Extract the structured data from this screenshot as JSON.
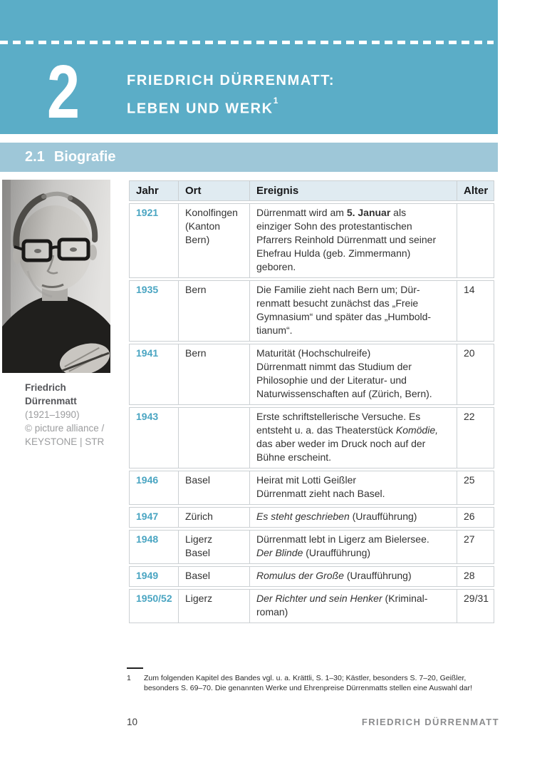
{
  "header": {
    "chapter_number": "2",
    "title_line1": "FRIEDRICH DÜRRENMATT:",
    "title_line2": "LEBEN UND WERK",
    "footnote_ref": "1"
  },
  "section": {
    "number": "2.1",
    "label": "Biografie"
  },
  "photo": {
    "caption_name_line1": "Friedrich",
    "caption_name_line2": "Dürrenmatt",
    "caption_years": "(1921–1990)",
    "caption_credit_line1": "© picture alliance /",
    "caption_credit_line2": "KEYSTONE | STR"
  },
  "table": {
    "headers": [
      "Jahr",
      "Ort",
      "Ereignis",
      "Alter"
    ],
    "rows": [
      {
        "jahr": "1921",
        "ort": "Konolfingen\n(Kanton\nBern)",
        "ereignis": [
          {
            "text": "Dürrenmatt wird am "
          },
          {
            "text": "5. Januar",
            "style": "bold"
          },
          {
            "text": " als\neinziger Sohn des protestantischen\nPfarrers Reinhold Dürrenmatt und seiner\nEhefrau Hulda (geb. Zimmermann)\ngeboren."
          }
        ],
        "alter": ""
      },
      {
        "jahr": "1935",
        "ort": "Bern",
        "ereignis": [
          {
            "text": "Die Familie zieht nach Bern um; Dür-\nrenmatt besucht zunächst das „Freie\nGymnasium“ und später das „Humbold-\ntianum“."
          }
        ],
        "alter": "14"
      },
      {
        "jahr": "1941",
        "ort": "Bern",
        "ereignis": [
          {
            "text": "Maturität (Hochschulreife)\nDürrenmatt nimmt das Studium der\nPhilosophie und der Literatur- und\nNaturwissenschaften auf (Zürich, Bern)."
          }
        ],
        "alter": "20"
      },
      {
        "jahr": "1943",
        "ort": "",
        "ereignis": [
          {
            "text": "Erste schriftstellerische Versuche. Es\nentsteht u. a. das Theaterstück "
          },
          {
            "text": "Komödie,",
            "style": "italic"
          },
          {
            "text": "\ndas aber weder im Druck noch auf der\nBühne erscheint."
          }
        ],
        "alter": "22"
      },
      {
        "jahr": "1946",
        "ort": "Basel",
        "ereignis": [
          {
            "text": "Heirat mit Lotti Geißler\nDürrenmatt zieht nach Basel."
          }
        ],
        "alter": "25"
      },
      {
        "jahr": "1947",
        "ort": "Zürich",
        "ereignis": [
          {
            "text": "Es steht geschrieben",
            "style": "italic"
          },
          {
            "text": " (Uraufführung)"
          }
        ],
        "alter": "26"
      },
      {
        "jahr": "1948",
        "ort": "Ligerz\nBasel",
        "ereignis": [
          {
            "text": "Dürrenmatt lebt in Ligerz am Bielersee.\n"
          },
          {
            "text": "Der Blinde",
            "style": "italic"
          },
          {
            "text": " (Uraufführung)"
          }
        ],
        "alter": "27"
      },
      {
        "jahr": "1949",
        "ort": "Basel",
        "ereignis": [
          {
            "text": "Romulus der Große",
            "style": "italic"
          },
          {
            "text": " (Uraufführung)"
          }
        ],
        "alter": "28"
      },
      {
        "jahr": "1950/52",
        "ort": "Ligerz",
        "ereignis": [
          {
            "text": "Der Richter und sein Henker",
            "style": "italic"
          },
          {
            "text": " (Kriminal-\nroman)"
          }
        ],
        "alter": "29/31"
      }
    ]
  },
  "footnote": {
    "marker": "1",
    "text": "Zum folgenden Kapitel des Bandes vgl. u. a. Krättli, S. 1–30; Kästler, besonders S. 7–20, Geißler,\nbesonders S. 69–70. Die genannten Werke und Ehrenpreise Dürrenmatts stellen eine Auswahl dar!"
  },
  "footer": {
    "page_number": "10",
    "running_title": "FRIEDRICH DÜRRENMATT"
  },
  "colors": {
    "band_teal": "#5badc7",
    "band_light_blue": "#9ec7d8",
    "table_header_bg": "#e0ebf1",
    "year_teal": "#4aa5c2",
    "table_border": "#cbd0d3",
    "running_title_gray": "#8b8c8e"
  }
}
